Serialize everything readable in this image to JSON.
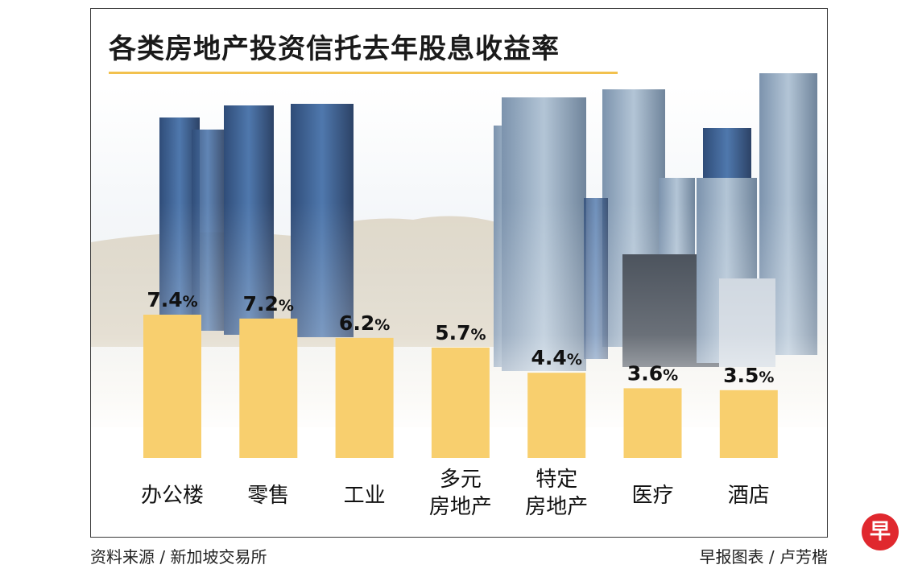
{
  "chart_data": {
    "type": "bar",
    "title": "各类房地产投资信托去年股息收益率",
    "categories": [
      "办公楼",
      "零售",
      "工业",
      "多元\n房地产",
      "特定\n房地产",
      "医疗",
      "酒店"
    ],
    "values": [
      7.4,
      7.2,
      6.2,
      5.7,
      4.4,
      3.6,
      3.5
    ],
    "unit": "%",
    "xlabel": "",
    "ylabel": "",
    "ylim": [
      0,
      7.4
    ],
    "grid": false,
    "bar_color": "#f8cf6e"
  },
  "footer": {
    "source": "资料来源 / 新加坡交易所",
    "credit": "早报图表 / 卢芳楷"
  },
  "brand": {
    "logo_char": "早",
    "logo_color": "#e0282e"
  }
}
